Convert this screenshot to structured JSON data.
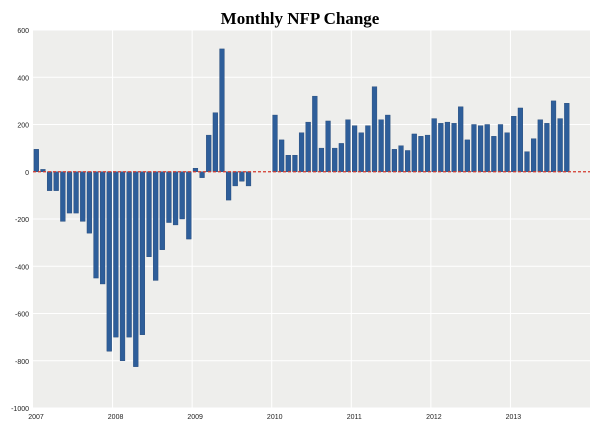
{
  "chart_data": {
    "type": "bar",
    "title": "Monthly NFP Change",
    "xlabel": "",
    "ylabel": "",
    "ylim": [
      -1000,
      600
    ],
    "yticks": [
      600,
      400,
      200,
      0,
      -200,
      -400,
      -600,
      -800,
      -1000
    ],
    "ytick_labels": [
      "600",
      "400",
      "200",
      "0",
      "-200",
      "-400",
      "-600",
      "-800",
      "-1000"
    ],
    "year_ticks": [
      {
        "label": "2007",
        "month_index": 0
      },
      {
        "label": "2008",
        "month_index": 12
      },
      {
        "label": "2009",
        "month_index": 24
      },
      {
        "label": "2010",
        "month_index": 36
      },
      {
        "label": "2011",
        "month_index": 48
      },
      {
        "label": "2012",
        "month_index": 60
      },
      {
        "label": "2013",
        "month_index": 72
      }
    ],
    "start": "2007-01",
    "total_slots": 84,
    "grid": true,
    "colors": {
      "bar": "#2e5e9a",
      "bar_edge": "#1f4373",
      "plot_bg": "#eeeeec",
      "grid": "#ffffff",
      "zero_line": "#d33a2c",
      "text": "#222222"
    },
    "series": [
      {
        "name": "Monthly NFP Change",
        "values": [
          95,
          10,
          -80,
          -80,
          -210,
          -175,
          -175,
          -210,
          -260,
          -450,
          -475,
          -760,
          -700,
          -800,
          -700,
          -825,
          -690,
          -360,
          -460,
          -330,
          -215,
          -225,
          -200,
          -285,
          15,
          -25,
          155,
          250,
          520,
          -120,
          -60,
          -40,
          -60,
          0,
          0,
          0,
          240,
          135,
          70,
          70,
          165,
          210,
          320,
          100,
          215,
          100,
          120,
          220,
          195,
          165,
          195,
          360,
          220,
          240,
          95,
          110,
          90,
          160,
          150,
          155,
          225,
          205,
          210,
          205,
          275,
          135,
          200,
          195,
          200,
          150,
          200,
          165,
          235,
          270,
          85,
          140,
          220,
          205,
          300,
          225,
          290
        ]
      }
    ]
  }
}
